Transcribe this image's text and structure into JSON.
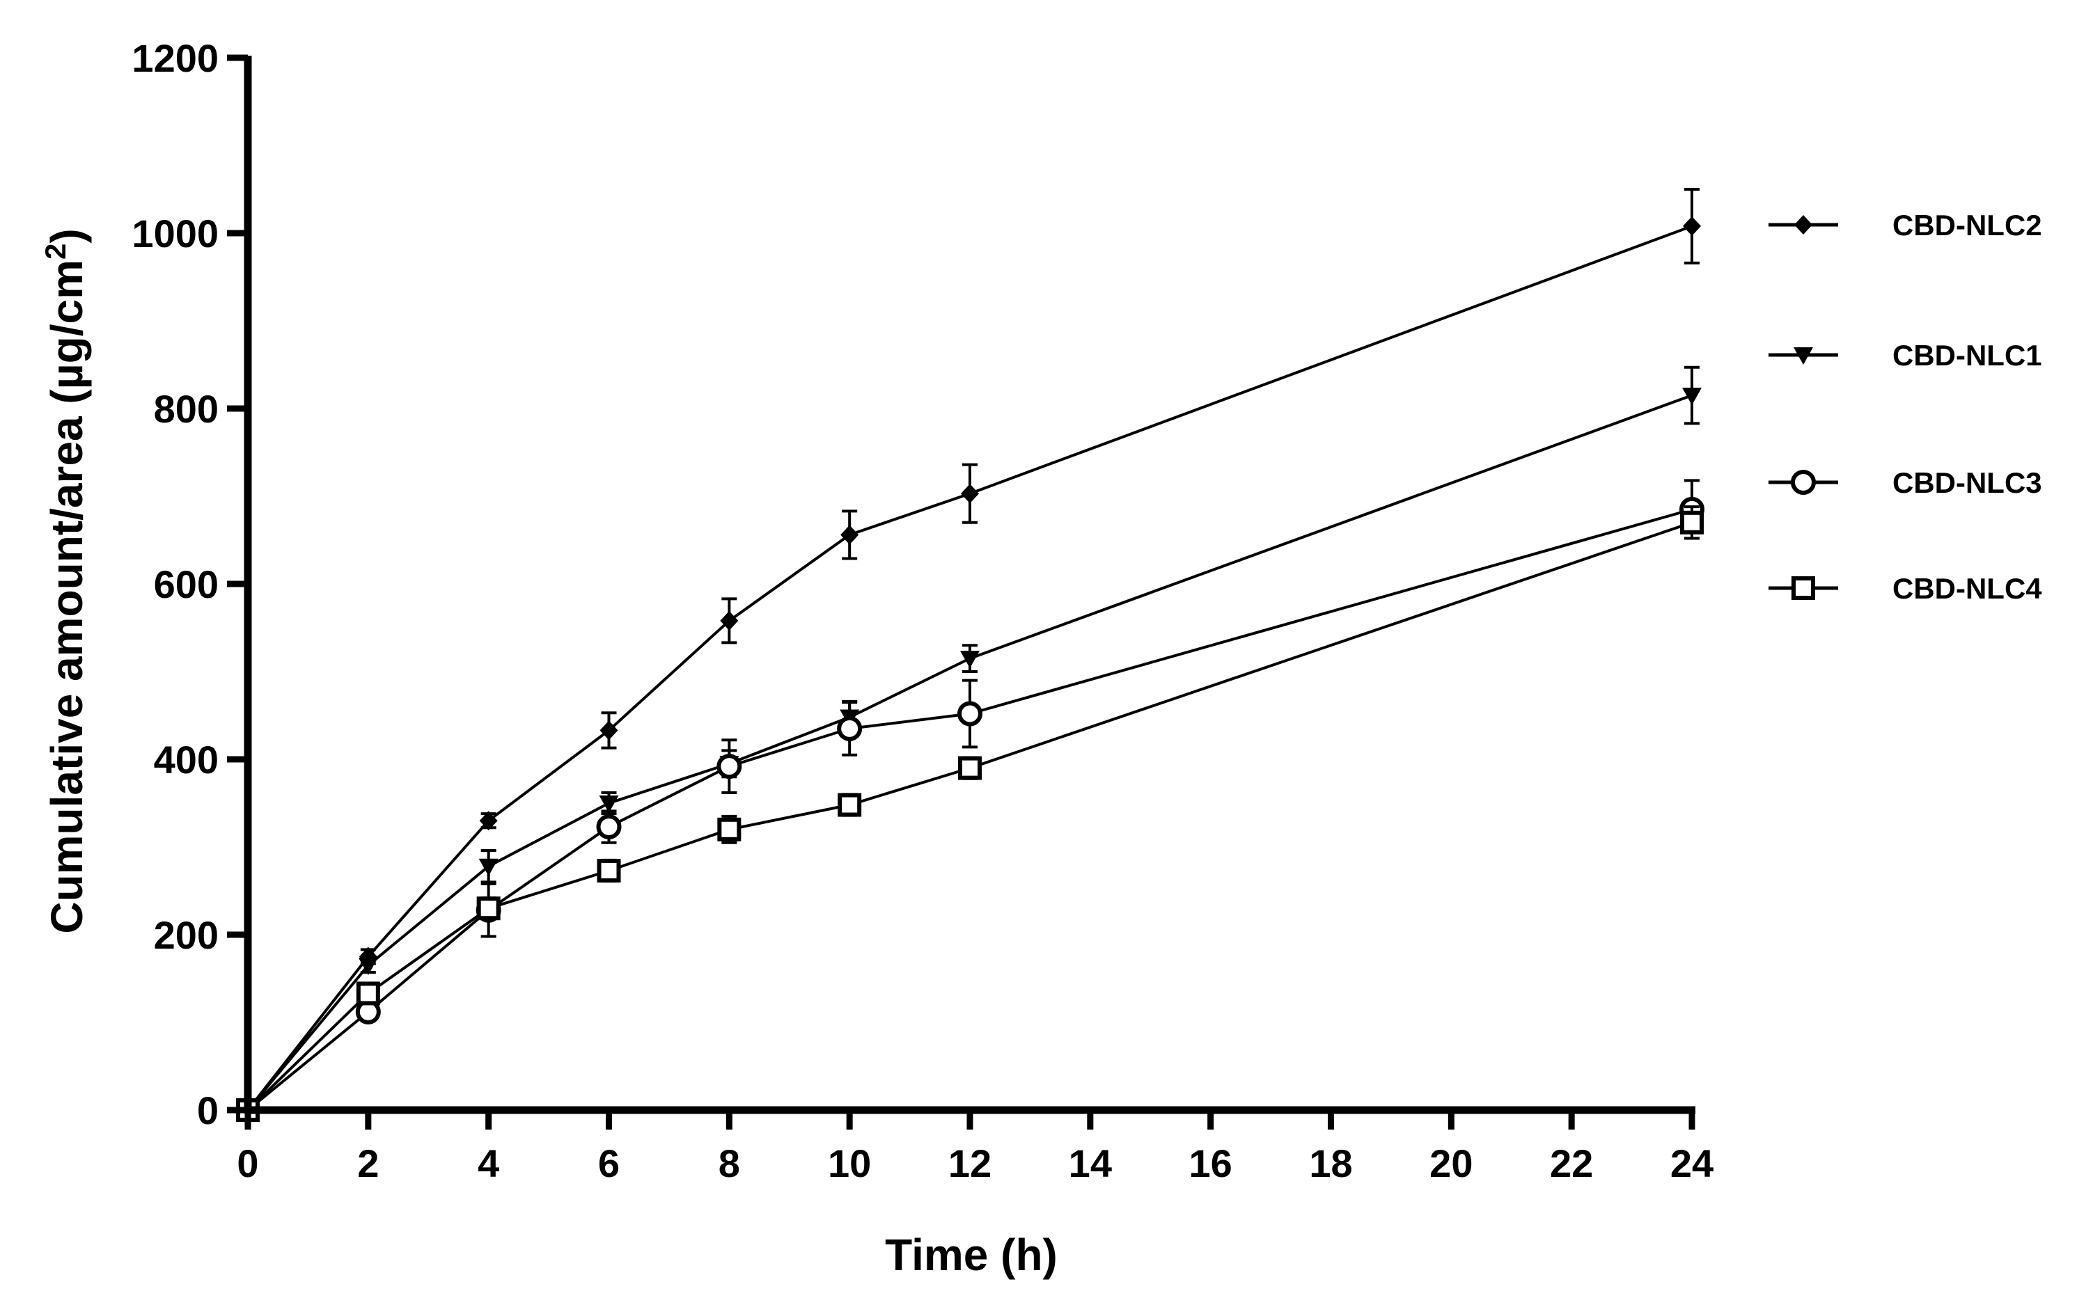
{
  "chart_data": {
    "type": "line",
    "title": "",
    "xlabel": "Time (h)",
    "ylabel_main": "Cumulative amount/area (µg/cm",
    "ylabel_sup": "2",
    "ylabel_tail": ")",
    "xlim": [
      0,
      24
    ],
    "ylim": [
      0,
      1200
    ],
    "xticks": [
      0,
      2,
      4,
      6,
      8,
      10,
      12,
      14,
      16,
      18,
      20,
      22,
      24
    ],
    "yticks": [
      0,
      200,
      400,
      600,
      800,
      1000,
      1200
    ],
    "x": [
      0,
      2,
      4,
      6,
      8,
      10,
      12,
      24
    ],
    "grid": false,
    "legend_position": "right",
    "series": [
      {
        "name": "CBD-NLC2",
        "marker": "diamond",
        "values": [
          0,
          175,
          330,
          433,
          558,
          656,
          703,
          1008
        ],
        "errors": [
          0,
          8,
          8,
          20,
          25,
          27,
          33,
          42
        ]
      },
      {
        "name": "CBD-NLC1",
        "marker": "triangle-down",
        "values": [
          0,
          165,
          278,
          350,
          395,
          448,
          515,
          815
        ],
        "errors": [
          0,
          8,
          18,
          12,
          15,
          18,
          15,
          32
        ]
      },
      {
        "name": "CBD-NLC3",
        "marker": "circle",
        "values": [
          0,
          112,
          228,
          323,
          392,
          435,
          452,
          685
        ],
        "errors": [
          0,
          8,
          30,
          18,
          30,
          30,
          38,
          33
        ]
      },
      {
        "name": "CBD-NLC4",
        "marker": "square",
        "values": [
          0,
          133,
          230,
          273,
          320,
          348,
          390,
          670
        ],
        "errors": [
          0,
          10,
          12,
          12,
          15,
          12,
          12,
          18
        ]
      }
    ]
  }
}
